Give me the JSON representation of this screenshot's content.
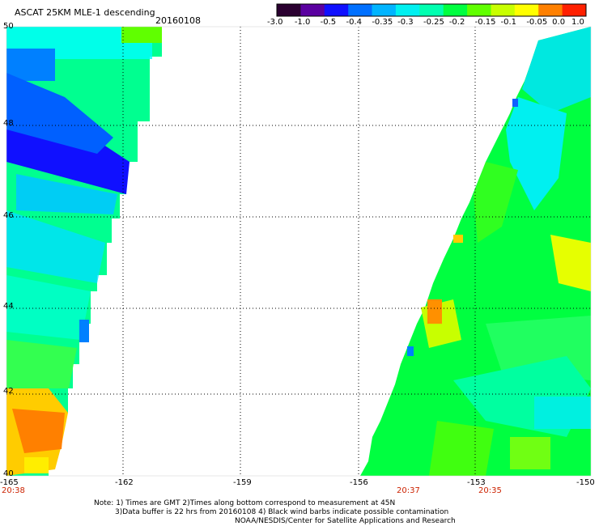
{
  "header": {
    "title": "ASCAT 25KM MLE-1 descending",
    "date": "20160108"
  },
  "colorbar": {
    "ticks": [
      "-3.0",
      "-1.0",
      "-0.5",
      "-0.4",
      "-0.35",
      "-0.3",
      "-0.25",
      "-0.2",
      "-0.15",
      "-0.1",
      "-0.05",
      "0.0",
      "1.0"
    ],
    "colors": [
      "#2a0030",
      "#5a00a0",
      "#1010ff",
      "#0070ff",
      "#00b4ff",
      "#00f0f0",
      "#00ffb0",
      "#00ff40",
      "#60ff00",
      "#c8ff00",
      "#ffff00",
      "#ff8000",
      "#ff2000"
    ]
  },
  "map": {
    "lat_labels": [
      "50",
      "48",
      "46",
      "44",
      "42",
      "40"
    ],
    "lon_labels": [
      "-165",
      "-162",
      "-159",
      "-156",
      "-153",
      "-150"
    ],
    "time_labels": [
      "20:38",
      "20:37",
      "20:35"
    ],
    "swaths": [
      {
        "name": "west-swath",
        "dominant": [
          "blue",
          "cyan",
          "green",
          "orange"
        ]
      },
      {
        "name": "east-swath",
        "dominant": [
          "green",
          "cyan",
          "yellow"
        ]
      }
    ]
  },
  "notes": {
    "line1": "Note: 1) Times are GMT 2)Times along bottom correspond to measurement at 45N",
    "line2": "3)Data buffer is 22 hrs from 20160108 4) Black wind barbs indicate possible contamination",
    "line3": "NOAA/NESDIS/Center for Satellite Applications and Research"
  }
}
